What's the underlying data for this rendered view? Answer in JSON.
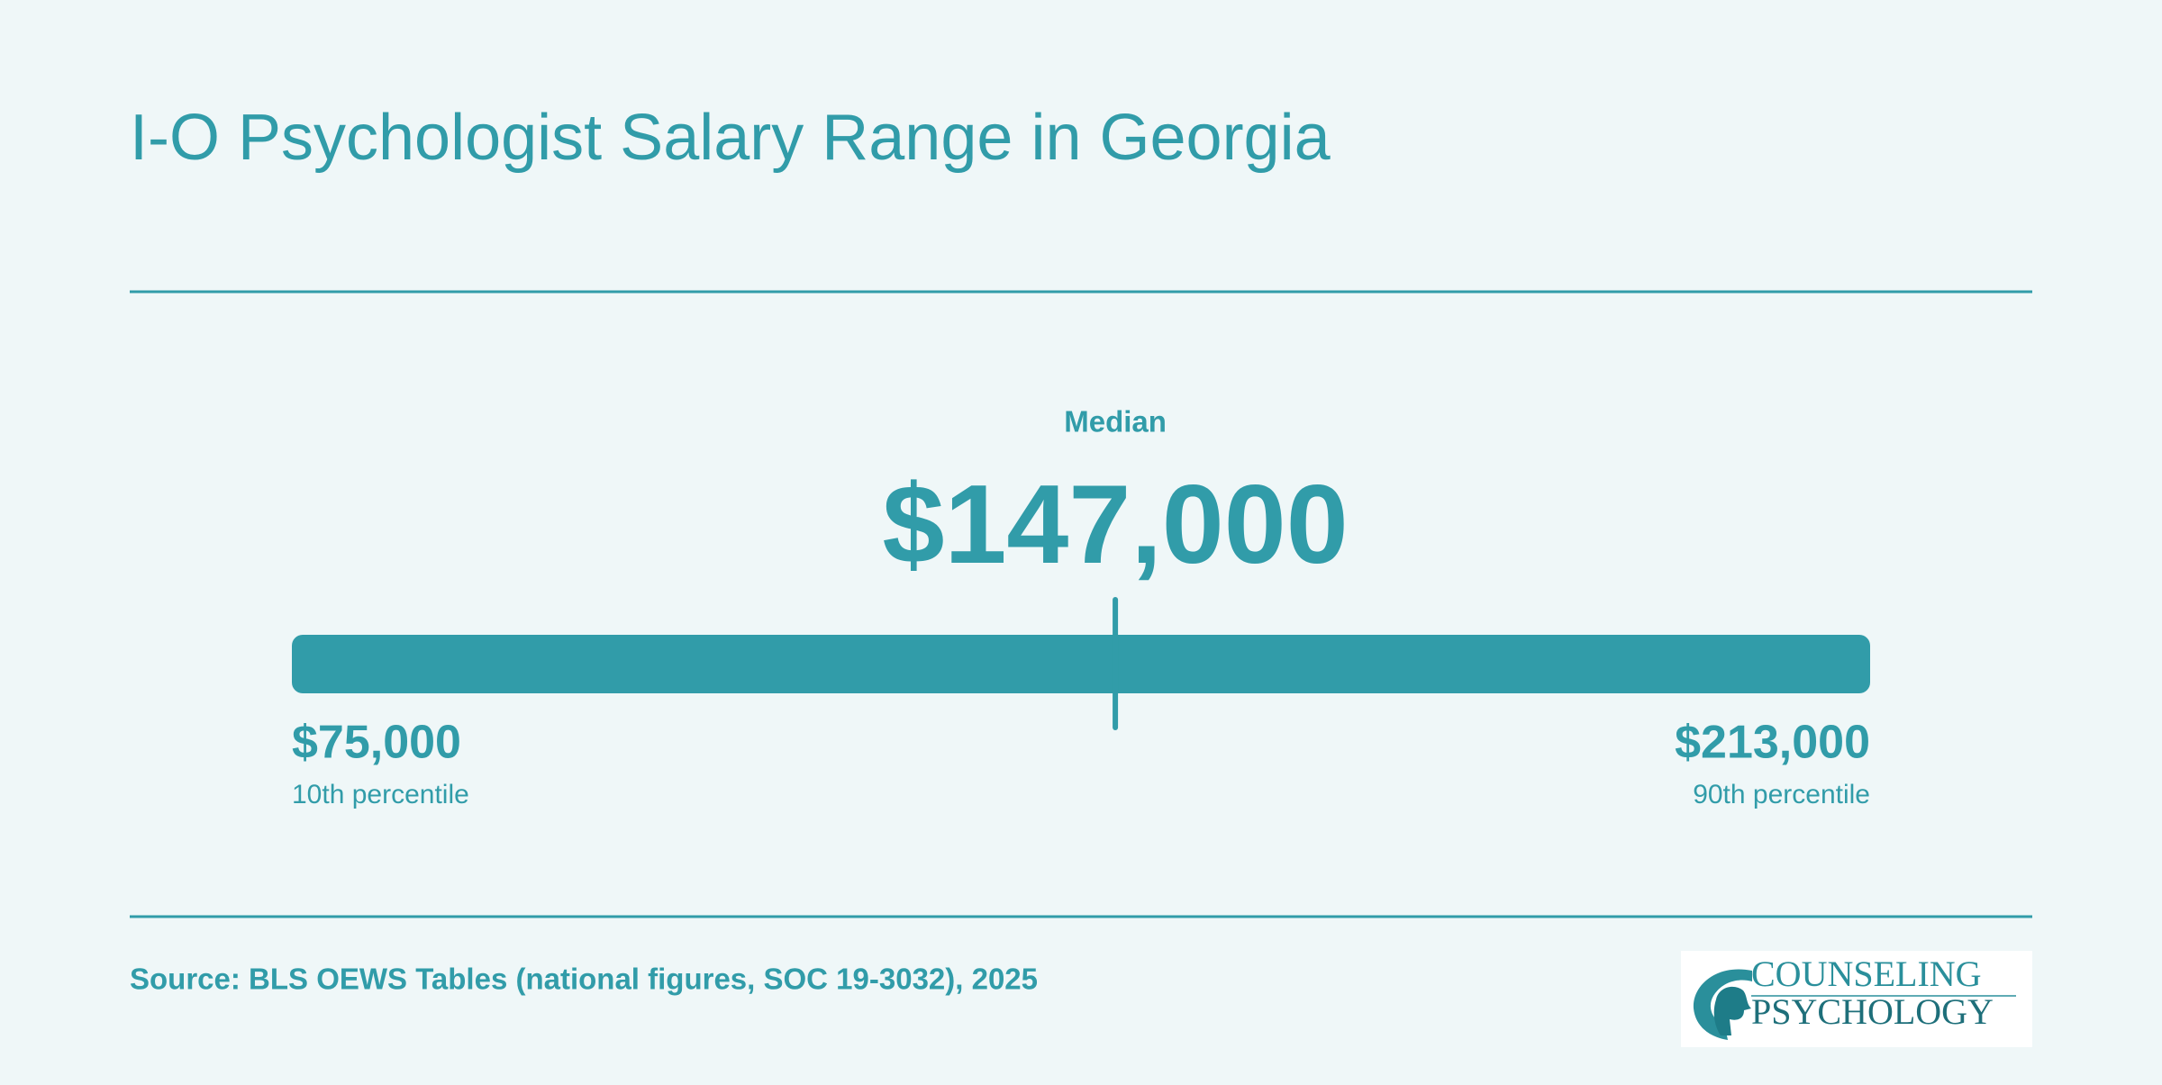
{
  "chart_data": {
    "type": "range",
    "title": "I-O Psychologist Salary Range in Georgia",
    "median_label": "Median",
    "values": [
      75000,
      147000,
      213000
    ],
    "value_labels": [
      "$75,000",
      "$147,000",
      "$213,000"
    ],
    "categories": [
      "10th percentile",
      null,
      "90th percentile"
    ],
    "xlim": [
      75000,
      213000
    ],
    "color": "#319ca9",
    "source": "Source: BLS OEWS Tables (national figures, SOC 19-3032), 2025"
  },
  "logo": {
    "line1": "COUNSELING",
    "line2": "PSYCHOLOGY"
  }
}
